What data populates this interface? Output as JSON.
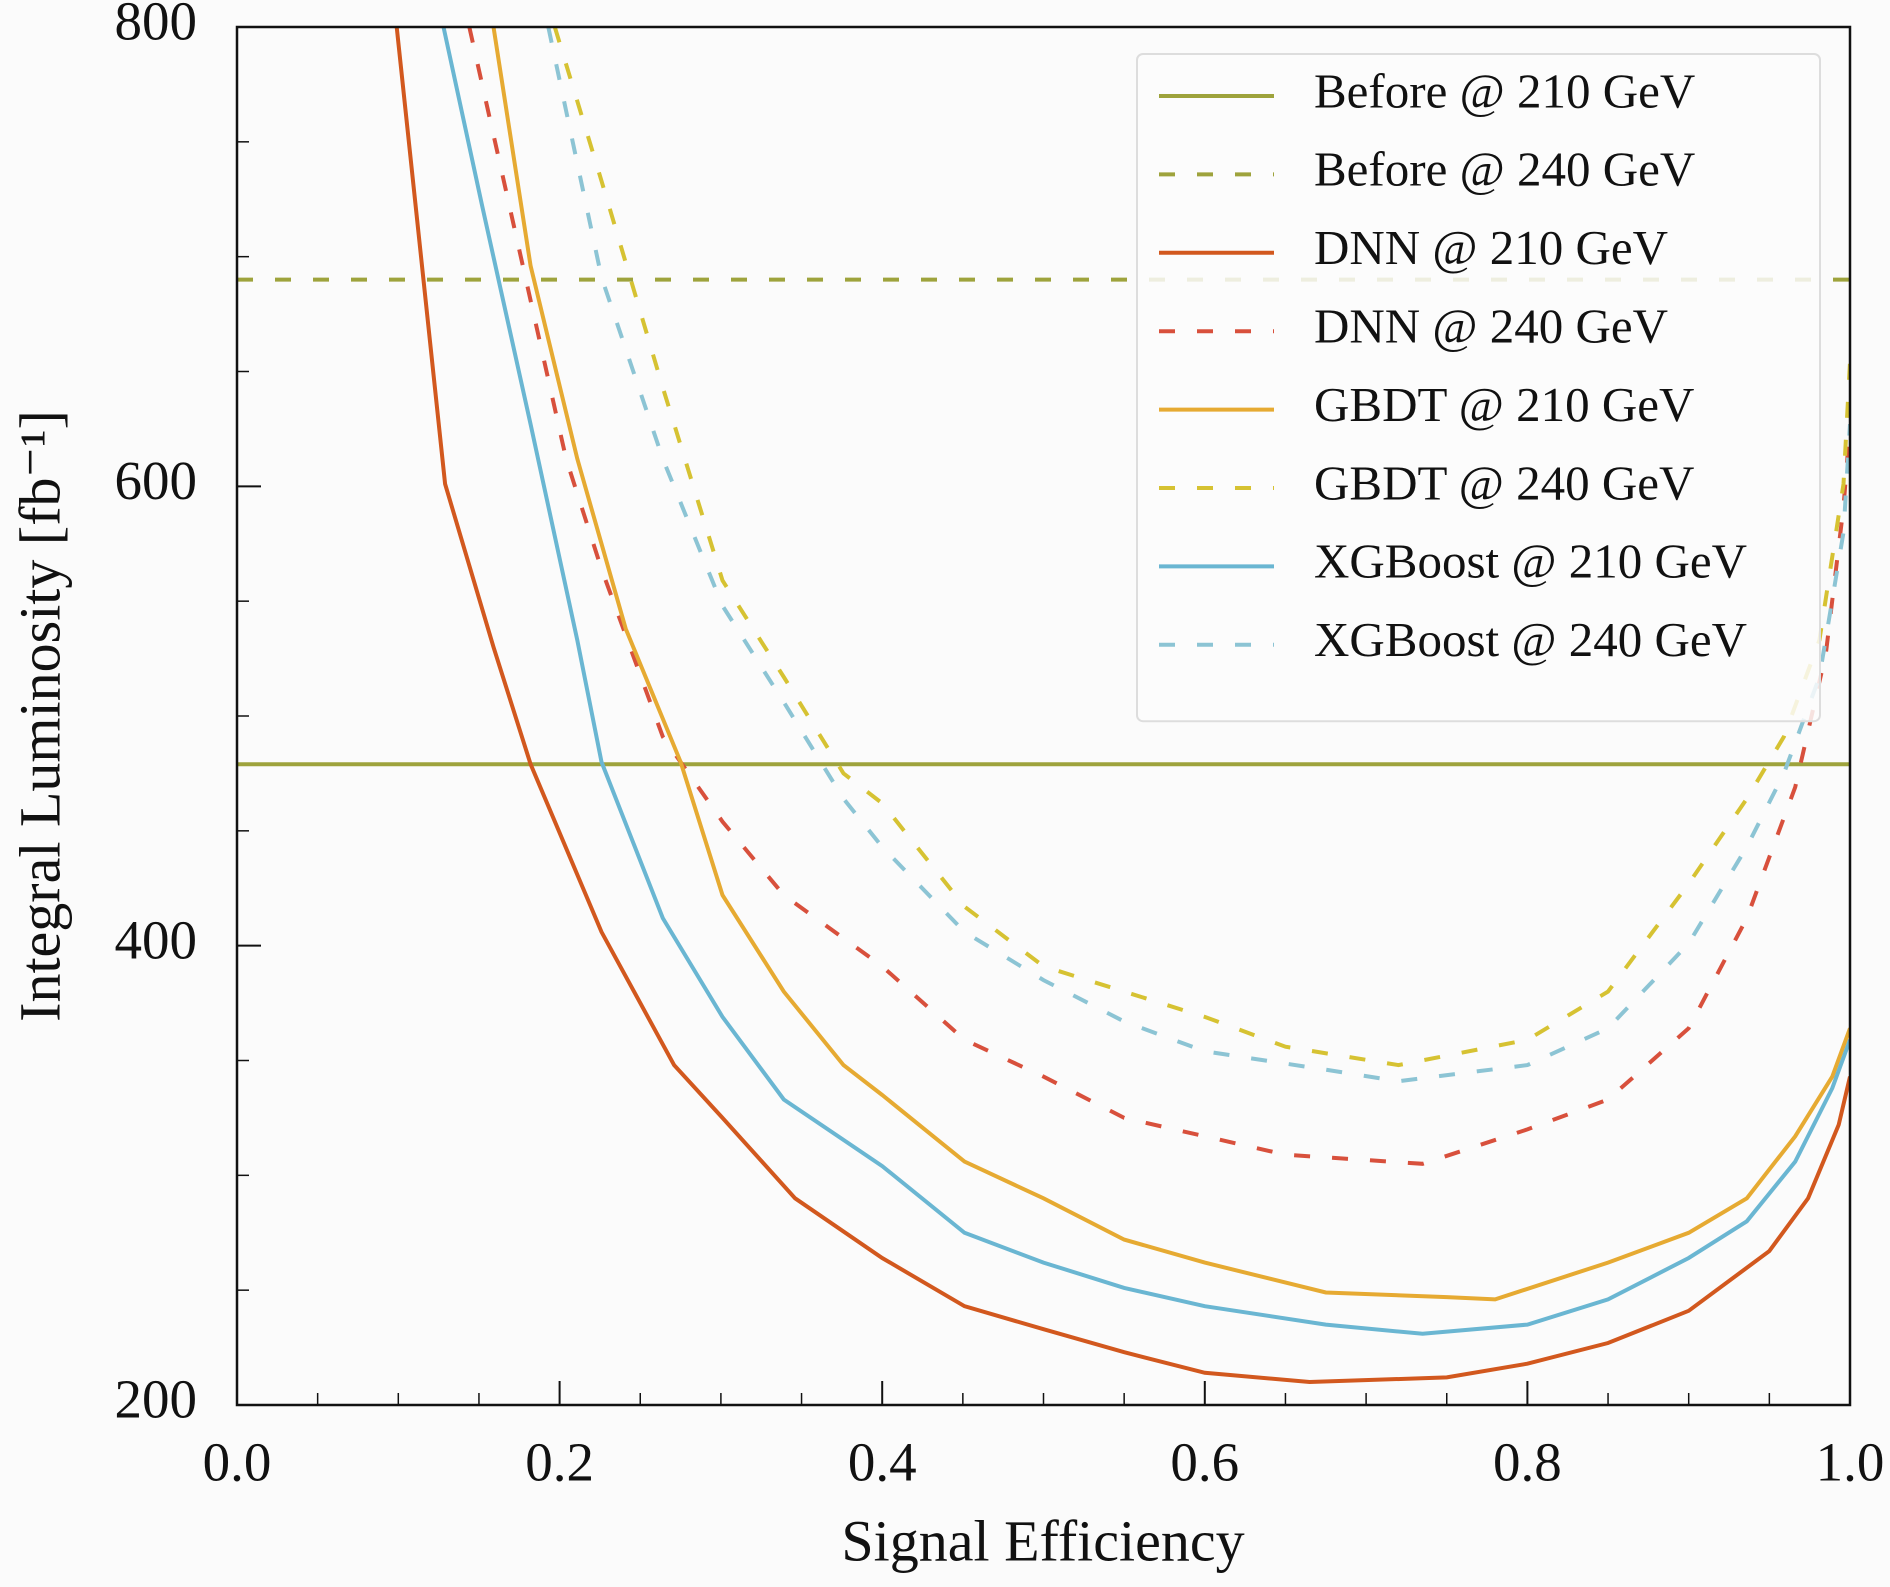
{
  "chart_data": {
    "type": "line",
    "xlabel": "Signal Efficiency",
    "ylabel": "Integral Luminosity [fb⁻¹]",
    "xlim": [
      0,
      1
    ],
    "ylim": [
      200,
      800
    ],
    "xticks": [
      {
        "value": 0,
        "label": "0.0"
      },
      0.2,
      0.4,
      0.6,
      0.8,
      {
        "value": 1,
        "label": "1.0"
      }
    ],
    "yticks": [
      200,
      400,
      600,
      800
    ],
    "xminorticks": [
      0.05,
      0.1,
      0.15,
      0.25,
      0.3,
      0.35,
      0.45,
      0.5,
      0.55,
      0.65,
      0.7,
      0.75,
      0.85,
      0.9,
      0.95
    ],
    "yminorticks": [
      250,
      300,
      350,
      450,
      500,
      550,
      650,
      700,
      750
    ],
    "legend": "upper right",
    "series": [
      {
        "name": "Before @ 210 GeV",
        "color": "#9ea33c",
        "dashed": false,
        "x": [
          0,
          1
        ],
        "values": [
          479,
          479
        ]
      },
      {
        "name": "Before @ 240 GeV",
        "color": "#9ea33c",
        "dashed": true,
        "x": [
          0,
          1
        ],
        "values": [
          690,
          690
        ]
      },
      {
        "name": "DNN @ 210 GeV",
        "color": "#d2581e",
        "dashed": false,
        "x": [
          0.099,
          0.129,
          0.159,
          0.182,
          0.226,
          0.271,
          0.301,
          0.346,
          0.4,
          0.451,
          0.5,
          0.55,
          0.6,
          0.665,
          0.75,
          0.8,
          0.85,
          0.9,
          0.95,
          0.974,
          0.993,
          1.0
        ],
        "values": [
          800,
          601,
          530,
          479,
          406,
          348,
          325,
          290,
          264,
          243,
          233,
          223,
          214,
          210,
          212,
          218,
          227,
          241,
          267,
          290,
          322,
          343
        ]
      },
      {
        "name": "DNN @ 240 GeV",
        "color": "#d8503c",
        "dashed": true,
        "x": [
          0.144,
          0.174,
          0.204,
          0.226,
          0.264,
          0.301,
          0.339,
          0.4,
          0.451,
          0.5,
          0.55,
          0.6,
          0.65,
          0.735,
          0.8,
          0.85,
          0.9,
          0.936,
          0.966,
          0.985,
          0.996,
          1.0
        ],
        "values": [
          800,
          706,
          612,
          564,
          491,
          454,
          422,
          391,
          359,
          343,
          325,
          317,
          309,
          305,
          320,
          333,
          364,
          412,
          469,
          527,
          591,
          627
        ]
      },
      {
        "name": "GBDT @ 210 GeV",
        "color": "#e6aa32",
        "dashed": false,
        "x": [
          0.159,
          0.182,
          0.211,
          0.241,
          0.275,
          0.301,
          0.339,
          0.376,
          0.4,
          0.451,
          0.5,
          0.55,
          0.6,
          0.675,
          0.75,
          0.78,
          0.85,
          0.9,
          0.936,
          0.966,
          0.989,
          1.0
        ],
        "values": [
          800,
          696,
          612,
          538,
          480,
          422,
          380,
          348,
          335,
          306,
          290,
          272,
          262,
          249,
          247,
          246,
          262,
          275,
          290,
          317,
          343,
          364
        ]
      },
      {
        "name": "GBDT @ 240 GeV",
        "color": "#d6c232",
        "dashed": true,
        "x": [
          0.197,
          0.226,
          0.264,
          0.301,
          0.339,
          0.376,
          0.4,
          0.451,
          0.5,
          0.55,
          0.6,
          0.65,
          0.72,
          0.8,
          0.85,
          0.9,
          0.936,
          0.959,
          0.981,
          0.996,
          1.0
        ],
        "values": [
          800,
          733,
          643,
          559,
          517,
          475,
          462,
          417,
          391,
          380,
          369,
          356,
          348,
          359,
          380,
          427,
          464,
          491,
          533,
          601,
          654
        ]
      },
      {
        "name": "XGBoost @ 210 GeV",
        "color": "#6ab6d2",
        "dashed": false,
        "x": [
          0.128,
          0.152,
          0.182,
          0.211,
          0.226,
          0.264,
          0.301,
          0.339,
          0.4,
          0.451,
          0.5,
          0.55,
          0.6,
          0.675,
          0.735,
          0.8,
          0.85,
          0.9,
          0.936,
          0.966,
          0.989,
          1.0
        ],
        "values": [
          800,
          722,
          627,
          533,
          480,
          412,
          369,
          333,
          304,
          275,
          262,
          251,
          243,
          235,
          231,
          235,
          246,
          264,
          280,
          306,
          338,
          359
        ]
      },
      {
        "name": "XGBoost @ 240 GeV",
        "color": "#8cc4d4",
        "dashed": true,
        "x": [
          0.193,
          0.226,
          0.264,
          0.301,
          0.339,
          0.376,
          0.4,
          0.451,
          0.5,
          0.55,
          0.6,
          0.675,
          0.72,
          0.8,
          0.85,
          0.9,
          0.936,
          0.959,
          0.981,
          0.996,
          1.0
        ],
        "values": [
          800,
          691,
          612,
          548,
          506,
          464,
          443,
          406,
          385,
          367,
          354,
          346,
          341,
          348,
          364,
          401,
          443,
          475,
          517,
          580,
          627
        ]
      }
    ]
  }
}
